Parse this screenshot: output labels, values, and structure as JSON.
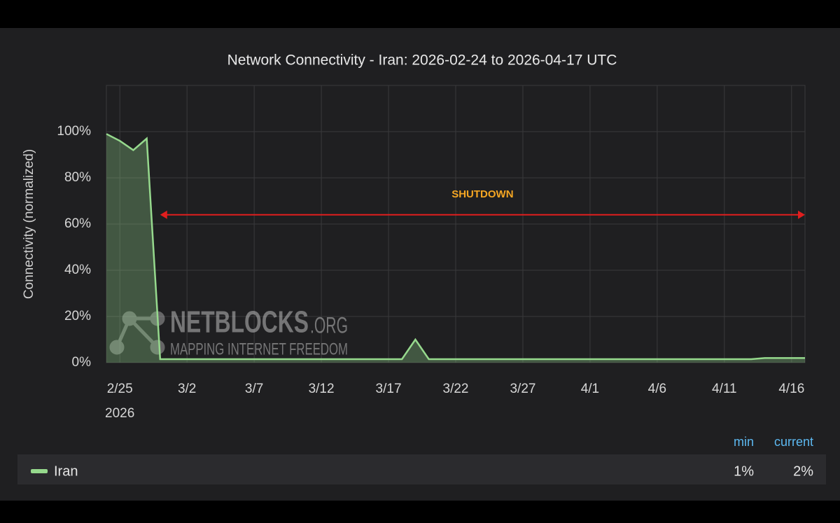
{
  "chart_data": {
    "type": "area",
    "title": "Network Connectivity - Iran: 2026-02-24 to 2026-04-17 UTC",
    "y_label": "Connectivity (normalized)",
    "x": [
      "2026-02-24",
      "2026-02-25",
      "2026-02-26",
      "2026-02-27",
      "2026-02-28",
      "2026-03-01",
      "2026-03-02",
      "2026-03-03",
      "2026-03-04",
      "2026-03-05",
      "2026-03-06",
      "2026-03-07",
      "2026-03-08",
      "2026-03-09",
      "2026-03-10",
      "2026-03-11",
      "2026-03-12",
      "2026-03-13",
      "2026-03-14",
      "2026-03-15",
      "2026-03-16",
      "2026-03-17",
      "2026-03-18",
      "2026-03-19",
      "2026-03-20",
      "2026-03-21",
      "2026-03-22",
      "2026-03-23",
      "2026-03-24",
      "2026-03-25",
      "2026-03-26",
      "2026-03-27",
      "2026-03-28",
      "2026-03-29",
      "2026-03-30",
      "2026-03-31",
      "2026-04-01",
      "2026-04-02",
      "2026-04-03",
      "2026-04-04",
      "2026-04-05",
      "2026-04-06",
      "2026-04-07",
      "2026-04-08",
      "2026-04-09",
      "2026-04-10",
      "2026-04-11",
      "2026-04-12",
      "2026-04-13",
      "2026-04-14",
      "2026-04-15",
      "2026-04-16",
      "2026-04-17"
    ],
    "series": [
      {
        "name": "Iran",
        "color": "#96d98d",
        "values": [
          99,
          96,
          92,
          97,
          1.5,
          1.5,
          1.5,
          1.5,
          1.5,
          1.5,
          1.5,
          1.5,
          1.5,
          1.5,
          1.5,
          1.5,
          1.5,
          1.5,
          1.5,
          1.5,
          1.5,
          1.5,
          1.5,
          10,
          1.5,
          1.5,
          1.5,
          1.5,
          1.5,
          1.5,
          1.5,
          1.5,
          1.5,
          1.5,
          1.5,
          1.5,
          1.5,
          1.5,
          1.5,
          1.5,
          1.5,
          1.5,
          1.5,
          1.5,
          1.5,
          1.5,
          1.5,
          1.5,
          1.5,
          2,
          2,
          2,
          2
        ],
        "stats": [
          {
            "name": "min",
            "value": 1,
            "label": "1%"
          },
          {
            "name": "current",
            "value": 2,
            "label": "2%"
          }
        ]
      }
    ],
    "xlim": [
      "2026-02-24",
      "2026-04-17"
    ],
    "xticks": [
      {
        "value": "2026-02-25",
        "label": "2/25"
      },
      {
        "value": "2026-03-02",
        "label": "3/2"
      },
      {
        "value": "2026-03-07",
        "label": "3/7"
      },
      {
        "value": "2026-03-12",
        "label": "3/12"
      },
      {
        "value": "2026-03-17",
        "label": "3/17"
      },
      {
        "value": "2026-03-22",
        "label": "3/22"
      },
      {
        "value": "2026-03-27",
        "label": "3/27"
      },
      {
        "value": "2026-04-01",
        "label": "4/1"
      },
      {
        "value": "2026-04-06",
        "label": "4/6"
      },
      {
        "value": "2026-04-11",
        "label": "4/11"
      },
      {
        "value": "2026-04-16",
        "label": "4/16"
      }
    ],
    "x_year_label": "2026",
    "ylim": [
      0,
      120
    ],
    "yticks": [
      {
        "value": 0,
        "label": "0%"
      },
      {
        "value": 20,
        "label": "20%"
      },
      {
        "value": 40,
        "label": "40%"
      },
      {
        "value": 60,
        "label": "60%"
      },
      {
        "value": 80,
        "label": "80%"
      },
      {
        "value": 100,
        "label": "100%"
      }
    ],
    "grid": true,
    "annotation": {
      "text": "SHUTDOWN",
      "x": [
        "2026-02-28",
        "2026-04-17"
      ],
      "y": 64,
      "color": "#e01e1e",
      "text_color": "#f5a623"
    },
    "watermark": {
      "name": "NETBLOCKS",
      "suffix": ".ORG",
      "tagline": "MAPPING INTERNET FREEDOM"
    }
  }
}
